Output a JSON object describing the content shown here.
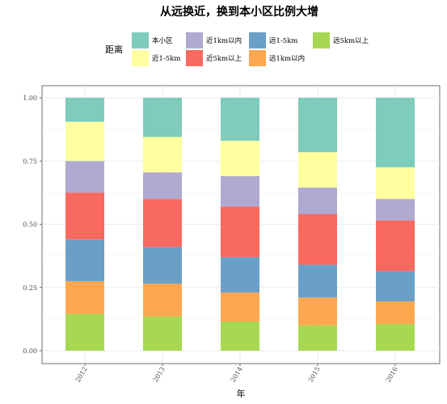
{
  "chart_data": {
    "type": "bar",
    "stacked": true,
    "normalized": true,
    "title": "从远换近，换到本小区比例大增",
    "xlabel": "年",
    "ylabel": "",
    "legend_title": "距离",
    "legend_position": "top",
    "categories": [
      "2012",
      "2013",
      "2014",
      "2015",
      "2016"
    ],
    "ylim": [
      0,
      1
    ],
    "yticks": [
      "0.00",
      "0.25",
      "0.50",
      "0.75",
      "1.00"
    ],
    "grid": true,
    "legend_order": [
      "本小区",
      "近1km以内",
      "远1-5km",
      "远5km以上",
      "近1-5km",
      "近5km以上",
      "远1km以内"
    ],
    "stack_order_bottom_to_top": [
      "远5km以上",
      "远1km以内",
      "远1-5km",
      "近5km以上",
      "近1km以内",
      "近1-5km",
      "本小区"
    ],
    "series": [
      {
        "name": "远5km以上",
        "color": "#a6d854",
        "values": [
          0.145,
          0.135,
          0.115,
          0.1,
          0.105
        ]
      },
      {
        "name": "远1km以内",
        "color": "#fda750",
        "values": [
          0.13,
          0.13,
          0.115,
          0.11,
          0.09
        ]
      },
      {
        "name": "远1-5km",
        "color": "#6aa0c8",
        "values": [
          0.165,
          0.145,
          0.14,
          0.13,
          0.12
        ]
      },
      {
        "name": "近5km以上",
        "color": "#f8695f",
        "values": [
          0.185,
          0.19,
          0.2,
          0.2,
          0.2
        ]
      },
      {
        "name": "近1km以内",
        "color": "#b0a9d0",
        "values": [
          0.125,
          0.105,
          0.12,
          0.105,
          0.085
        ]
      },
      {
        "name": "近1-5km",
        "color": "#ffffa0",
        "values": [
          0.155,
          0.14,
          0.14,
          0.14,
          0.125
        ]
      },
      {
        "name": "本小区",
        "color": "#7fcbbc",
        "values": [
          0.095,
          0.155,
          0.17,
          0.215,
          0.275
        ]
      }
    ]
  }
}
